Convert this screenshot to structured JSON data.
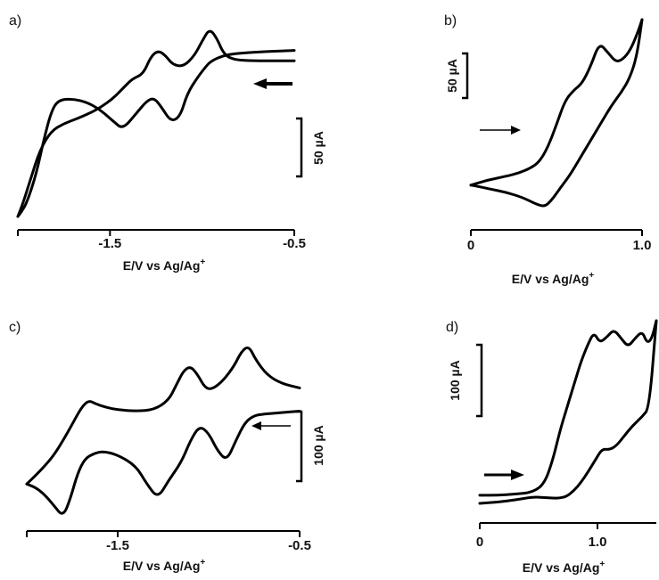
{
  "chart_data": [
    {
      "panel": "a)",
      "type": "line",
      "xlabel": "E/V vs Ag/Ag",
      "xlabel_sup": "+",
      "xlim": [
        -2.0,
        -0.5
      ],
      "xticks": [
        {
          "value": -2.0,
          "label": ""
        },
        {
          "value": -1.5,
          "label": "-1.5"
        },
        {
          "value": -0.5,
          "label": "-0.5"
        }
      ],
      "scale_bar": "50 µA",
      "scan_direction": "left",
      "y_unit": "µA",
      "series": [
        {
          "values_x": [
            -0.5,
            -0.65,
            -0.8,
            -0.88,
            -0.95,
            -0.98,
            -1.02,
            -1.08,
            -1.12,
            -1.17,
            -1.22,
            -1.26,
            -1.3,
            -1.36,
            -1.43,
            -1.48,
            -1.55,
            -1.62,
            -1.7,
            -1.78,
            -1.82,
            -1.86,
            -1.9,
            -1.95,
            -1.98,
            -2.0
          ],
          "values_y": [
            55,
            54,
            52,
            50,
            44,
            38,
            28,
            10,
            -15,
            -20,
            -5,
            5,
            2,
            -12,
            -28,
            -20,
            -8,
            0,
            4,
            3,
            -10,
            -40,
            -75,
            -105,
            -115,
            -120
          ]
        },
        {
          "values_x": [
            -2.0,
            -1.97,
            -1.93,
            -1.88,
            -1.82,
            -1.75,
            -1.68,
            -1.62,
            -1.55,
            -1.48,
            -1.43,
            -1.38,
            -1.32,
            -1.28,
            -1.24,
            -1.2,
            -1.16,
            -1.1,
            -1.04,
            -1.0,
            -0.96,
            -0.92,
            -0.88,
            -0.82,
            -0.72,
            -0.6,
            -0.5
          ],
          "values_y": [
            -120,
            -105,
            -80,
            -50,
            -30,
            -22,
            -17,
            -12,
            -5,
            5,
            15,
            25,
            30,
            48,
            55,
            50,
            40,
            38,
            50,
            65,
            78,
            68,
            50,
            45,
            44,
            44,
            44
          ]
        }
      ]
    },
    {
      "panel": "b)",
      "type": "line",
      "xlabel": "E/V vs Ag/Ag",
      "xlabel_sup": "+",
      "xlim": [
        0.0,
        1.0
      ],
      "xticks": [
        {
          "value": 0.0,
          "label": "0"
        },
        {
          "value": 1.0,
          "label": "1.0"
        }
      ],
      "scale_bar": "50 µA",
      "scan_direction": "right",
      "y_unit": "µA",
      "series": [
        {
          "values_x": [
            0.0,
            0.1,
            0.2,
            0.28,
            0.35,
            0.4,
            0.45,
            0.5,
            0.55,
            0.6,
            0.65,
            0.7,
            0.75,
            0.8,
            0.85,
            0.9,
            0.94,
            0.98,
            1.0
          ],
          "values_y": [
            -30,
            -24,
            -20,
            -16,
            -10,
            -3,
            14,
            40,
            68,
            80,
            88,
            108,
            135,
            124,
            112,
            118,
            130,
            150,
            162
          ]
        },
        {
          "values_x": [
            1.0,
            0.97,
            0.93,
            0.88,
            0.82,
            0.76,
            0.7,
            0.64,
            0.58,
            0.52,
            0.47,
            0.43,
            0.38,
            0.3,
            0.2,
            0.1,
            0.03,
            0.0
          ],
          "values_y": [
            162,
            120,
            95,
            78,
            62,
            42,
            22,
            2,
            -18,
            -34,
            -48,
            -55,
            -52,
            -44,
            -38,
            -34,
            -31,
            -30
          ]
        }
      ]
    },
    {
      "panel": "c)",
      "type": "line",
      "xlabel": "E/V vs Ag/Ag",
      "xlabel_sup": "+",
      "xlim": [
        -2.0,
        -0.5
      ],
      "xticks": [
        {
          "value": -2.0,
          "label": ""
        },
        {
          "value": -1.5,
          "label": "-1.5"
        },
        {
          "value": -0.5,
          "label": "-0.5"
        }
      ],
      "scale_bar": "100 µA",
      "scan_direction": "left",
      "y_unit": "µA",
      "series": [
        {
          "values_x": [
            -0.5,
            -0.6,
            -0.7,
            -0.75,
            -0.8,
            -0.85,
            -0.9,
            -0.95,
            -1.0,
            -1.05,
            -1.1,
            -1.15,
            -1.22,
            -1.28,
            -1.34,
            -1.4,
            -1.5,
            -1.58,
            -1.63,
            -1.68,
            -1.72,
            -1.76,
            -1.8,
            -1.85,
            -1.9,
            -1.95,
            -2.0
          ],
          "values_y": [
            0,
            -2,
            -4,
            -6,
            -15,
            -40,
            -68,
            -55,
            -30,
            -20,
            -40,
            -70,
            -95,
            -120,
            -100,
            -75,
            -60,
            -55,
            -58,
            -65,
            -85,
            -120,
            -145,
            -130,
            -115,
            -105,
            -100
          ]
        },
        {
          "values_x": [
            -2.0,
            -1.95,
            -1.9,
            -1.85,
            -1.8,
            -1.75,
            -1.7,
            -1.66,
            -1.62,
            -1.56,
            -1.5,
            -1.4,
            -1.3,
            -1.22,
            -1.18,
            -1.14,
            -1.1,
            -1.06,
            -1.02,
            -0.98,
            -0.92,
            -0.86,
            -0.82,
            -0.78,
            -0.74,
            -0.68,
            -0.6,
            -0.5
          ],
          "values_y": [
            -100,
            -88,
            -75,
            -60,
            -40,
            -18,
            5,
            15,
            10,
            5,
            2,
            0,
            2,
            15,
            35,
            55,
            62,
            50,
            32,
            30,
            42,
            62,
            82,
            90,
            70,
            50,
            38,
            32
          ]
        }
      ]
    },
    {
      "panel": "d)",
      "type": "line",
      "xlabel": "E/V vs Ag/Ag",
      "xlabel_sup": "+",
      "xlim": [
        0.0,
        1.5
      ],
      "xticks": [
        {
          "value": 0.0,
          "label": "0"
        },
        {
          "value": 1.0,
          "label": "1.0"
        }
      ],
      "scale_bar": "100 µA",
      "scan_direction": "right",
      "y_unit": "µA",
      "series": [
        {
          "values_x": [
            0.0,
            0.15,
            0.3,
            0.45,
            0.55,
            0.62,
            0.68,
            0.74,
            0.8,
            0.86,
            0.92,
            0.97,
            1.02,
            1.08,
            1.14,
            1.2,
            1.26,
            1.32,
            1.38,
            1.42,
            1.46,
            1.5
          ],
          "values_y": [
            0,
            0,
            2,
            5,
            20,
            60,
            110,
            150,
            190,
            230,
            260,
            280,
            262,
            272,
            285,
            270,
            255,
            270,
            282,
            262,
            268,
            300
          ]
        },
        {
          "values_x": [
            1.5,
            1.44,
            1.38,
            1.3,
            1.22,
            1.16,
            1.1,
            1.04,
            0.98,
            0.92,
            0.86,
            0.8,
            0.74,
            0.68,
            0.62,
            0.55,
            0.45,
            0.3,
            0.15,
            0.0
          ],
          "values_y": [
            300,
            150,
            135,
            120,
            100,
            85,
            78,
            80,
            60,
            40,
            22,
            8,
            -2,
            -5,
            -5,
            -4,
            -3,
            -8,
            -12,
            -14
          ]
        }
      ]
    }
  ]
}
